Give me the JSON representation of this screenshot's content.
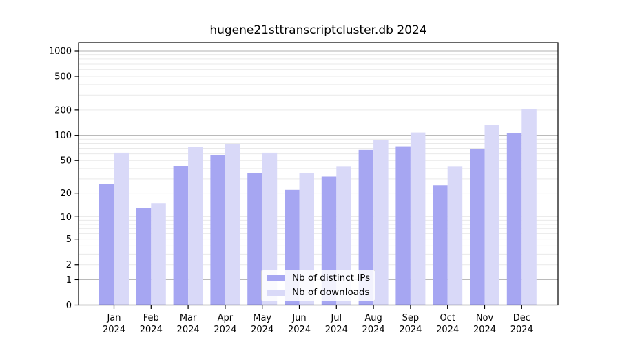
{
  "page": {
    "background": "#ffffff"
  },
  "chart_data": {
    "type": "bar",
    "title": "hugene21sttranscriptcluster.db 2024",
    "categories": [
      "Jan",
      "Feb",
      "Mar",
      "Apr",
      "May",
      "Jun",
      "Jul",
      "Aug",
      "Sep",
      "Oct",
      "Nov",
      "Dec"
    ],
    "category_year_label": "2024",
    "series": [
      {
        "name": "Nb of distinct IPs",
        "color": "#a6a6f2",
        "values": [
          26,
          13,
          43,
          58,
          35,
          22,
          32,
          67,
          74,
          25,
          69,
          106
        ]
      },
      {
        "name": "Nb of downloads",
        "color": "#d9d9f8",
        "values": [
          62,
          15,
          73,
          78,
          62,
          35,
          42,
          88,
          108,
          42,
          134,
          207
        ]
      }
    ],
    "y_scale": "log10(1+v)",
    "yticks": [
      0,
      1,
      2,
      5,
      10,
      20,
      50,
      100,
      200,
      500,
      1000
    ],
    "ylim": [
      0,
      1250
    ],
    "grid": {
      "major_values": [
        1,
        10,
        100,
        1000
      ],
      "major_color": "#b0b0b0",
      "minor_color": "#e9e9e9"
    },
    "axis_color": "#000000",
    "legend_position": "inside-bottom-center"
  }
}
